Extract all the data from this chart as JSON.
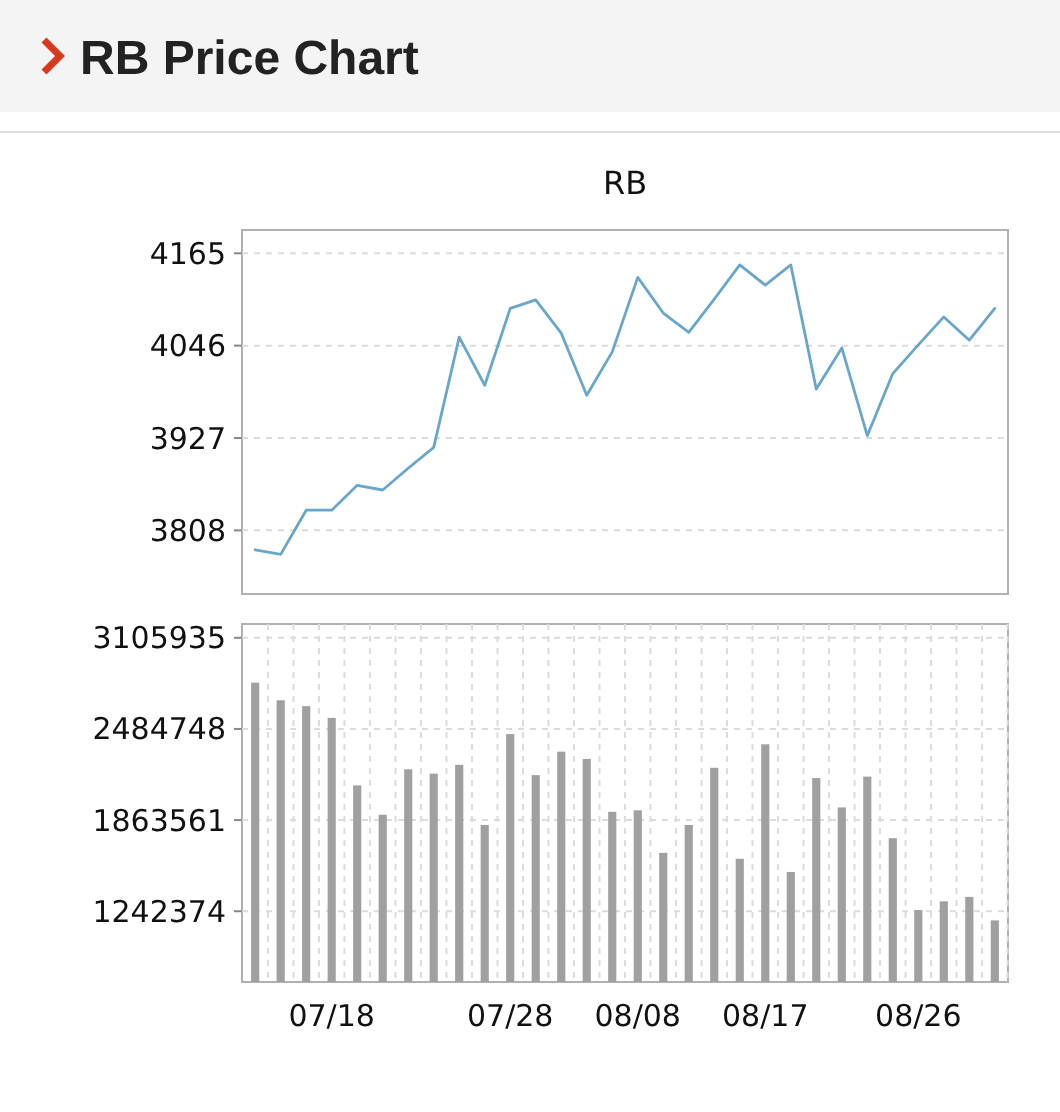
{
  "chart_data": [
    {
      "type": "line",
      "title": "RB Price Chart",
      "subtitle": "RB",
      "categories": [
        null,
        null,
        null,
        null,
        null,
        null,
        null,
        null,
        null,
        null,
        null,
        null,
        null,
        null,
        null,
        null,
        null,
        null,
        null,
        null,
        null,
        null,
        null,
        null,
        null,
        null,
        null,
        null,
        null,
        null
      ],
      "series": [
        {
          "color": "#6aa6c8",
          "values": [
            3783,
            3777,
            3834,
            3834,
            3866,
            3860,
            3888,
            3915,
            4057,
            3995,
            4094,
            4105,
            4062,
            3982,
            4038,
            4134,
            4088,
            4063,
            4106,
            4150,
            4124,
            4150,
            3990,
            4043,
            3930,
            4010,
            4047,
            4083,
            4053,
            4094
          ]
        }
      ],
      "ylim": [
        3726,
        4195
      ],
      "yticks": [
        3808,
        3927,
        4046,
        4165
      ],
      "grid": "y"
    },
    {
      "type": "bar",
      "categories": [
        null,
        null,
        null,
        "07/18",
        null,
        null,
        null,
        null,
        null,
        null,
        "07/28",
        null,
        null,
        null,
        null,
        "08/08",
        null,
        null,
        null,
        null,
        "08/17",
        null,
        null,
        null,
        null,
        null,
        "08/26",
        null,
        null,
        null
      ],
      "series": [
        {
          "color": "#a0a0a0",
          "values": [
            2800000,
            2680000,
            2640000,
            2560000,
            2100000,
            1900000,
            2210000,
            2180000,
            2240000,
            1830000,
            2450000,
            2170000,
            2330000,
            2280000,
            1920000,
            1930000,
            1640000,
            1830000,
            2220000,
            1600000,
            2380000,
            1510000,
            2150000,
            1950000,
            2160000,
            1740000,
            1250000,
            1310000,
            1340000,
            1180000
          ]
        }
      ],
      "ylim": [
        760000,
        3200000
      ],
      "yticks": [
        1242374,
        1863561,
        2484748,
        3105935
      ],
      "grid": true
    }
  ]
}
